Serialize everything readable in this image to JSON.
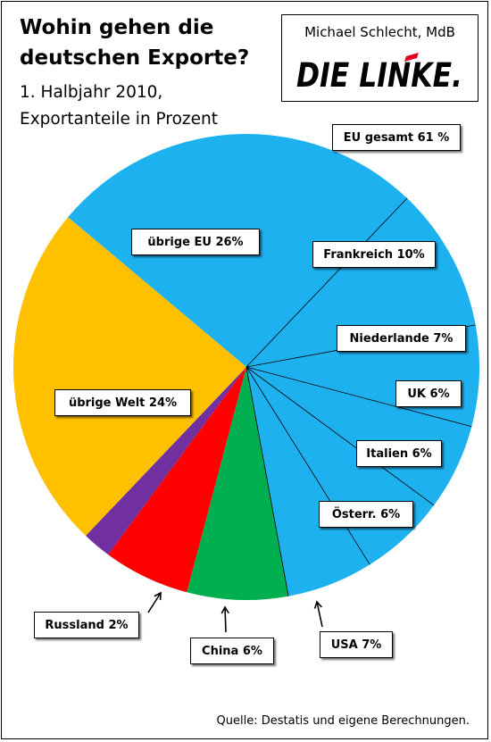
{
  "header": {
    "title": "Wohin gehen die deutschen Exporte?",
    "subtitle_line1": "1. Halbjahr 2010,",
    "subtitle_line2": "Exportanteile in Prozent"
  },
  "logo": {
    "author": "Michael Schlecht, MdB",
    "party": "DIE LINKE.",
    "accent_color": "#E2001A"
  },
  "chart_data": {
    "type": "pie",
    "title": "Wohin gehen die deutschen Exporte?",
    "subtitle": "1. Halbjahr 2010, Exportanteile in Prozent",
    "unit": "%",
    "group_label": "EU gesamt 61 %",
    "slices": [
      {
        "label": "übrige EU 26%",
        "value": 26,
        "color": "#1EB1F0"
      },
      {
        "label": "Frankreich 10%",
        "value": 10,
        "color": "#1EB1F0"
      },
      {
        "label": "Niederlande 7%",
        "value": 7,
        "color": "#1EB1F0"
      },
      {
        "label": "UK 6%",
        "value": 6,
        "color": "#1EB1F0"
      },
      {
        "label": "Italien 6%",
        "value": 6,
        "color": "#1EB1F0"
      },
      {
        "label": "Österr. 6%",
        "value": 6,
        "color": "#1EB1F0"
      },
      {
        "label": "USA 7%",
        "value": 7,
        "color": "#00B050"
      },
      {
        "label": "China 6%",
        "value": 6,
        "color": "#FF0000"
      },
      {
        "label": "Russland 2%",
        "value": 2,
        "color": "#7030A0"
      },
      {
        "label": "übrige Welt 24%",
        "value": 24,
        "color": "#FFC000"
      }
    ]
  },
  "footer": {
    "source": "Quelle: Destatis und eigene Berechnungen."
  }
}
